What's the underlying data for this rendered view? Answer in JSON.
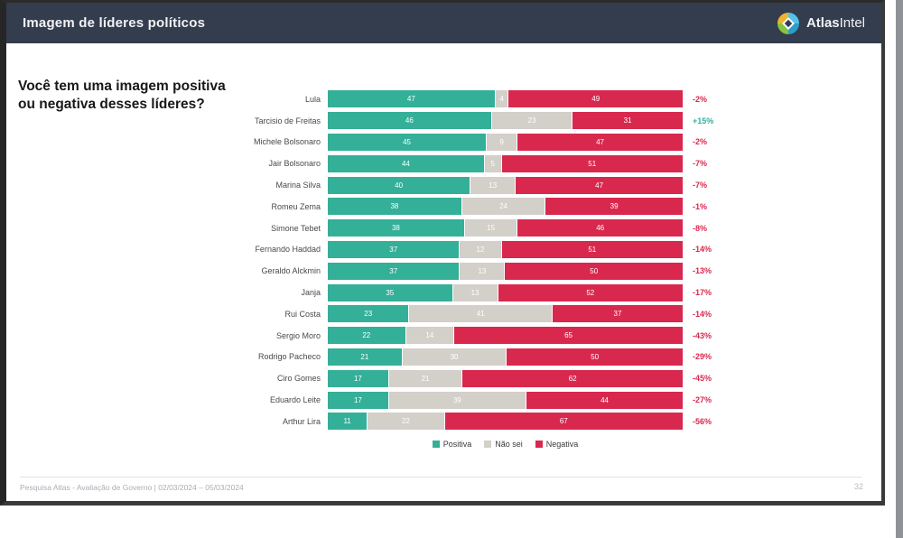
{
  "header": {
    "title": "Imagem de líderes políticos",
    "logo_atlas": "Atlas",
    "logo_intel": "Intel"
  },
  "question": {
    "line1": "Você tem uma imagem positiva",
    "line2": "ou negativa desses líderes?"
  },
  "footer": {
    "source": "Pesquisa Atlas - Avaliação de Governo | 02/03/2024 – 05/03/2024",
    "page_number": "32"
  },
  "chart_data": {
    "type": "bar",
    "orientation": "horizontal",
    "stacked": true,
    "title": "Você tem uma imagem positiva ou negativa desses líderes?",
    "xlim": [
      0,
      100
    ],
    "legend_position": "bottom",
    "colors": {
      "positive": "#34af98",
      "dontknow": "#d3cfc9",
      "negative": "#d9284e",
      "diff_positive": "#34af98",
      "diff_negative": "#d9284e"
    },
    "legend": [
      "Positiva",
      "Não sei",
      "Negativa"
    ],
    "categories": [
      "Lula",
      "Tarcisio de Freitas",
      "Michele Bolsonaro",
      "Jair Bolsonaro",
      "Marina Silva",
      "Romeu Zema",
      "Simone Tebet",
      "Fernando Haddad",
      "Geraldo Alckmin",
      "Janja",
      "Rui Costa",
      "Sergio Moro",
      "Rodrigo Pacheco",
      "Ciro Gomes",
      "Eduardo Leite",
      "Arthur Lira"
    ],
    "series": [
      {
        "name": "Positiva",
        "color": "#34af98",
        "values": [
          47,
          46,
          45,
          44,
          40,
          38,
          38,
          37,
          37,
          35,
          23,
          22,
          21,
          17,
          17,
          11
        ]
      },
      {
        "name": "Não sei",
        "color": "#d3cfc9",
        "values": [
          4,
          23,
          9,
          5,
          13,
          24,
          15,
          12,
          13,
          13,
          41,
          14,
          30,
          21,
          39,
          22
        ]
      },
      {
        "name": "Negativa",
        "color": "#d9284e",
        "values": [
          49,
          31,
          47,
          51,
          47,
          39,
          46,
          51,
          50,
          52,
          37,
          65,
          50,
          62,
          44,
          67
        ]
      }
    ],
    "net_diff": [
      "-2%",
      "+15%",
      "-2%",
      "-7%",
      "-7%",
      "-1%",
      "-8%",
      "-14%",
      "-13%",
      "-17%",
      "-14%",
      "-43%",
      "-29%",
      "-45%",
      "-27%",
      "-56%"
    ]
  }
}
